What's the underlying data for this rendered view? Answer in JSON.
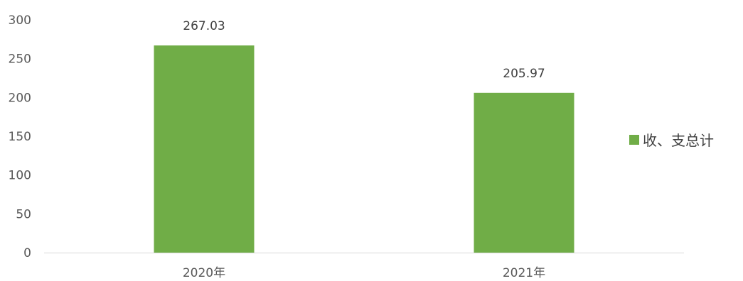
{
  "chart_data": {
    "type": "bar",
    "categories": [
      "2020年",
      "2021年"
    ],
    "series": [
      {
        "name": "收、支总计",
        "values": [
          267.03,
          205.97
        ],
        "data_labels": [
          "267.03",
          "205.97"
        ],
        "color": "#70ad47"
      }
    ],
    "ylim": [
      0,
      300
    ],
    "yticks": [
      0,
      50,
      100,
      150,
      200,
      250,
      300
    ],
    "ytick_labels": [
      "0",
      "50",
      "100",
      "150",
      "200",
      "250",
      "300"
    ],
    "title": "",
    "xlabel": "",
    "ylabel": "",
    "grid": false,
    "legend_position": "right",
    "axis_color": "#d9d9d9"
  }
}
